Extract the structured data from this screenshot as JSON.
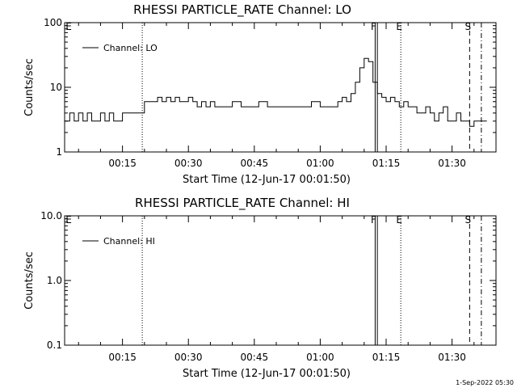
{
  "footer": {
    "stamp": "1-Sep-2022 05:30"
  },
  "chart_data": [
    {
      "type": "line",
      "title": "RHESSI PARTICLE_RATE Channel: LO",
      "xlabel": "Start Time (12-Jun-17 00:01:50)",
      "ylabel": "Counts/sec",
      "yscale": "log",
      "ylim": [
        1,
        100
      ],
      "xlim": [
        "00:01:50",
        "01:40:00"
      ],
      "y_tick_labels": [
        "1",
        "10",
        "100"
      ],
      "x_tick_labels": [
        "00:15",
        "00:30",
        "00:45",
        "01:00",
        "01:15",
        "01:30"
      ],
      "legend": {
        "position": "top-left",
        "entries": [
          "Channel: LO"
        ]
      },
      "flags": [
        {
          "label": "F",
          "time": "01:12:30",
          "style": "solid"
        },
        {
          "label": "E",
          "time": "01:18:20",
          "style": "dotted"
        },
        {
          "label": "S",
          "time": "01:34:00",
          "style": "dashed"
        },
        {
          "label": "",
          "time": "01:36:40",
          "style": "dash-dot"
        }
      ],
      "extra_lines": [
        {
          "time": "00:19:30",
          "style": "dotted"
        },
        {
          "time": "01:13:00",
          "style": "solid"
        }
      ],
      "corner_label": "E",
      "series": [
        {
          "name": "Channel: LO",
          "x": [
            "00:01:50",
            "00:03:00",
            "00:04:00",
            "00:05:00",
            "00:06:00",
            "00:07:00",
            "00:08:00",
            "00:09:00",
            "00:10:00",
            "00:11:00",
            "00:12:00",
            "00:13:00",
            "00:14:00",
            "00:15:00",
            "00:16:00",
            "00:17:00",
            "00:18:00",
            "00:19:00",
            "00:19:30",
            "00:20:00",
            "00:21:00",
            "00:22:00",
            "00:23:00",
            "00:24:00",
            "00:25:00",
            "00:26:00",
            "00:27:00",
            "00:28:00",
            "00:29:00",
            "00:30:00",
            "00:31:00",
            "00:32:00",
            "00:33:00",
            "00:34:00",
            "00:35:00",
            "00:36:00",
            "00:38:00",
            "00:40:00",
            "00:42:00",
            "00:44:00",
            "00:46:00",
            "00:48:00",
            "00:50:00",
            "00:52:00",
            "00:54:00",
            "00:56:00",
            "00:58:00",
            "01:00:00",
            "01:02:00",
            "01:04:00",
            "01:05:00",
            "01:06:00",
            "01:07:00",
            "01:08:00",
            "01:09:00",
            "01:10:00",
            "01:11:00",
            "01:12:00",
            "01:13:00",
            "01:14:00",
            "01:15:00",
            "01:16:00",
            "01:17:00",
            "01:18:00",
            "01:19:00",
            "01:20:00",
            "01:21:00",
            "01:22:00",
            "01:23:00",
            "01:24:00",
            "01:25:00",
            "01:26:00",
            "01:27:00",
            "01:28:00",
            "01:29:00",
            "01:30:00",
            "01:31:00",
            "01:32:00",
            "01:33:00",
            "01:34:00",
            "01:35:00",
            "01:36:00",
            "01:37:00"
          ],
          "values": [
            3,
            4,
            3,
            4,
            3,
            4,
            3,
            3,
            4,
            3,
            4,
            3,
            3,
            4,
            4,
            4,
            4,
            4,
            4,
            6,
            6,
            6,
            7,
            6,
            7,
            6,
            7,
            6,
            6,
            7,
            6,
            5,
            6,
            5,
            6,
            5,
            5,
            6,
            5,
            5,
            6,
            5,
            5,
            5,
            5,
            5,
            6,
            5,
            5,
            6,
            7,
            6,
            8,
            12,
            20,
            28,
            25,
            12,
            8,
            7,
            6,
            7,
            6,
            5,
            6,
            5,
            5,
            4,
            4,
            5,
            4,
            3,
            4,
            5,
            3,
            3,
            4,
            3,
            3,
            2.5,
            3,
            3,
            3
          ]
        }
      ]
    },
    {
      "type": "line",
      "title": "RHESSI PARTICLE_RATE Channel: HI",
      "xlabel": "Start Time (12-Jun-17 00:01:50)",
      "ylabel": "Counts/sec",
      "yscale": "log",
      "ylim": [
        0.1,
        10
      ],
      "xlim": [
        "00:01:50",
        "01:40:00"
      ],
      "y_tick_labels": [
        "0.1",
        "1.0",
        "10.0"
      ],
      "x_tick_labels": [
        "00:15",
        "00:30",
        "00:45",
        "01:00",
        "01:15",
        "01:30"
      ],
      "legend": {
        "position": "top-left",
        "entries": [
          "Channel: HI"
        ]
      },
      "flags": [
        {
          "label": "F",
          "time": "01:12:30",
          "style": "solid"
        },
        {
          "label": "E",
          "time": "01:18:20",
          "style": "dotted"
        },
        {
          "label": "S",
          "time": "01:34:00",
          "style": "dashed"
        },
        {
          "label": "",
          "time": "01:36:40",
          "style": "dash-dot"
        }
      ],
      "extra_lines": [
        {
          "time": "00:19:30",
          "style": "dotted"
        },
        {
          "time": "01:13:00",
          "style": "solid"
        }
      ],
      "corner_label": "E",
      "series": [
        {
          "name": "Channel: HI",
          "x": [],
          "values": []
        }
      ]
    }
  ]
}
